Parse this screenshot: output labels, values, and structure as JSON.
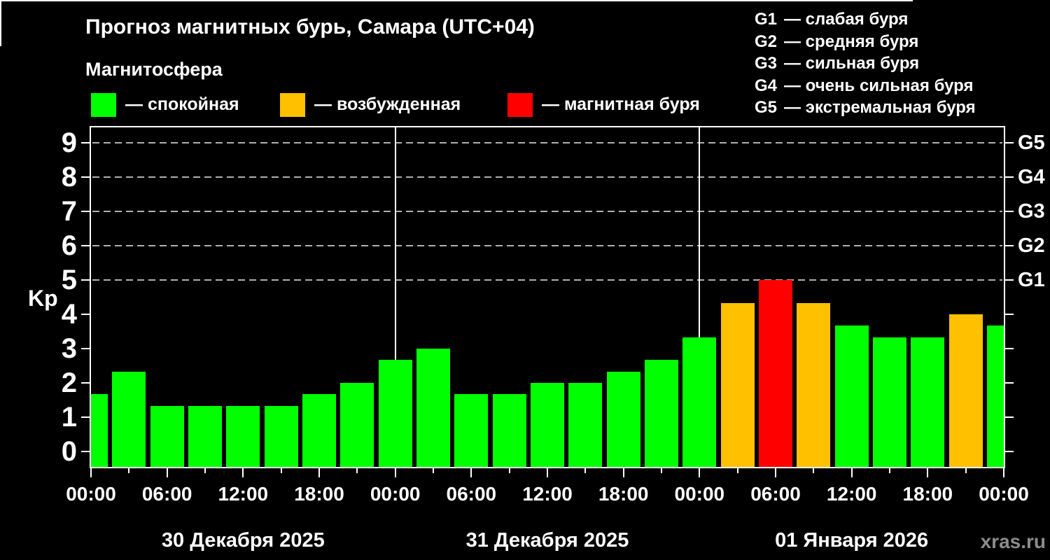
{
  "title": "Прогноз магнитных бурь, Самара (UTC+04)",
  "subtitle": "Магнитосфера",
  "legend": [
    {
      "id": "quiet",
      "label": "— спокойная",
      "color": "#00ff00"
    },
    {
      "id": "excited",
      "label": "— возбужденная",
      "color": "#ffc000"
    },
    {
      "id": "storm",
      "label": "— магнитная буря",
      "color": "#ff0000"
    }
  ],
  "storm_scale": [
    {
      "code": "G1",
      "label": "— слабая буря"
    },
    {
      "code": "G2",
      "label": "— средняя буря"
    },
    {
      "code": "G3",
      "label": "— сильная буря"
    },
    {
      "code": "G4",
      "label": "— очень сильная буря"
    },
    {
      "code": "G5",
      "label": "— экстремальная буря"
    }
  ],
  "watermark": "xras.ru",
  "chart_data": {
    "type": "bar",
    "title": "Прогноз магнитных бурь, Самара (UTC+04)",
    "ylabel": "Kp",
    "ylim": [
      0,
      9
    ],
    "y_ticks": [
      0,
      1,
      2,
      3,
      4,
      5,
      6,
      7,
      8,
      9
    ],
    "gridlines_at_kp": [
      5,
      6,
      7,
      8,
      9
    ],
    "grid": "dashed, only at G-storm levels",
    "right_axis": [
      {
        "label": "G1",
        "kp": 5
      },
      {
        "label": "G2",
        "kp": 6
      },
      {
        "label": "G3",
        "kp": 7
      },
      {
        "label": "G4",
        "kp": 8
      },
      {
        "label": "G5",
        "kp": 9
      }
    ],
    "interval_hours": 3,
    "x_hours": [
      0,
      3,
      6,
      9,
      12,
      15,
      18,
      21,
      24,
      27,
      30,
      33,
      36,
      39,
      42,
      45,
      48,
      51,
      54,
      57,
      60,
      63,
      66,
      69,
      72
    ],
    "values": [
      1.67,
      2.33,
      1.33,
      1.33,
      1.33,
      1.33,
      1.67,
      2.0,
      2.67,
      3.0,
      1.67,
      1.67,
      2.0,
      2.0,
      2.33,
      2.67,
      3.33,
      4.33,
      5.0,
      4.33,
      3.67,
      3.33,
      3.33,
      4.0,
      3.67
    ],
    "x_tick_labels": [
      "00:00",
      "06:00",
      "12:00",
      "18:00",
      "00:00",
      "06:00",
      "12:00",
      "18:00",
      "00:00",
      "06:00",
      "12:00",
      "18:00",
      "00:00"
    ],
    "x_tick_label_hours": [
      0,
      6,
      12,
      18,
      24,
      30,
      36,
      42,
      48,
      54,
      60,
      66,
      72
    ],
    "days": [
      {
        "label": "30 Декабря 2025",
        "start_hour": 0,
        "end_hour": 24
      },
      {
        "label": "31 Декабря 2025",
        "start_hour": 24,
        "end_hour": 48
      },
      {
        "label": "01 Января 2026",
        "start_hour": 48,
        "end_hour": 72
      }
    ],
    "day_boundary_hours": [
      24,
      48
    ],
    "colors": {
      "quiet": "#00ff00",
      "excited": "#ffc000",
      "storm": "#ff0000"
    },
    "thresholds": {
      "excited_min_kp": 4,
      "storm_min_kp": 5
    },
    "legend_position": "top"
  }
}
